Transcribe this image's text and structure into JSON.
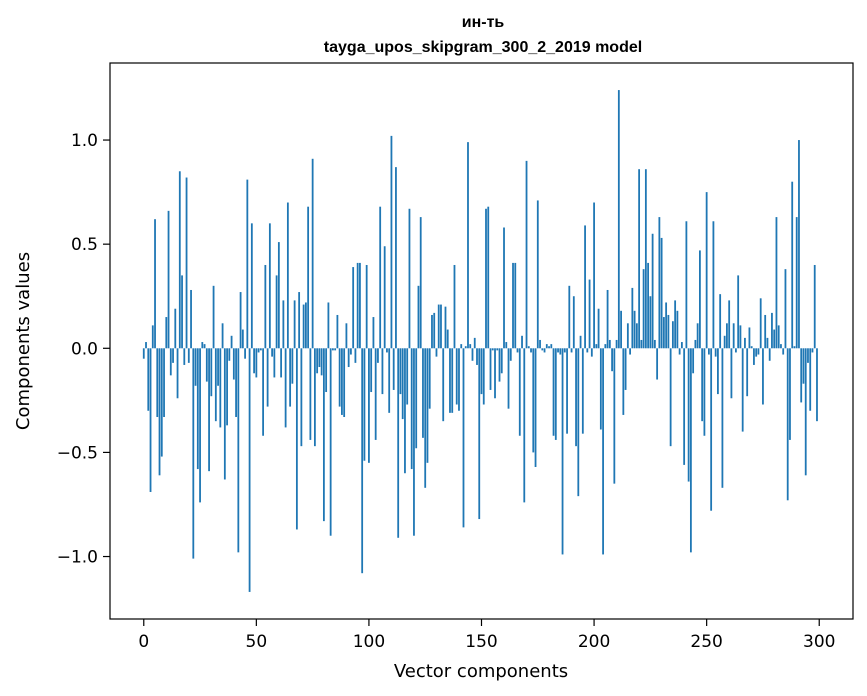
{
  "chart_data": {
    "type": "bar",
    "title": "ин-ть",
    "subtitle": "tayga_upos_skipgram_300_2_2019 model",
    "xlabel": "Vector components",
    "ylabel": "Components values",
    "xlim": [
      -15,
      315
    ],
    "ylim": [
      -1.3,
      1.37
    ],
    "x_ticks": [
      0,
      50,
      100,
      150,
      200,
      250,
      300
    ],
    "x_tick_labels": [
      "0",
      "50",
      "100",
      "150",
      "200",
      "250",
      "300"
    ],
    "y_ticks": [
      -1.0,
      -0.5,
      0.0,
      0.5,
      1.0
    ],
    "y_tick_labels": [
      "−1.0",
      "−0.5",
      "0.0",
      "0.5",
      "1.0"
    ],
    "grid": false,
    "bar_color": "#1f77b4",
    "values": [
      -0.05,
      0.03,
      -0.3,
      -0.69,
      0.11,
      0.62,
      -0.33,
      -0.61,
      -0.52,
      -0.33,
      0.15,
      0.66,
      -0.13,
      -0.07,
      0.19,
      -0.24,
      0.85,
      0.35,
      -0.08,
      0.82,
      -0.07,
      0.28,
      -1.01,
      -0.18,
      -0.58,
      -0.74,
      0.03,
      0.02,
      -0.16,
      -0.59,
      -0.23,
      0.3,
      -0.35,
      -0.18,
      -0.38,
      0.12,
      -0.63,
      -0.37,
      -0.06,
      0.06,
      -0.15,
      -0.33,
      -0.98,
      0.27,
      0.09,
      -0.05,
      0.81,
      -1.17,
      0.6,
      -0.12,
      -0.14,
      -0.02,
      -0.01,
      -0.42,
      0.4,
      -0.28,
      0.6,
      -0.04,
      -0.14,
      0.35,
      0.51,
      -0.14,
      0.23,
      -0.38,
      0.7,
      -0.28,
      -0.17,
      0.23,
      -0.87,
      0.27,
      -0.47,
      0.21,
      0.22,
      0.68,
      -0.44,
      0.91,
      -0.47,
      -0.12,
      -0.09,
      -0.13,
      -0.83,
      -0.21,
      0.22,
      -0.9,
      -0.01,
      -0.01,
      0.16,
      -0.28,
      -0.32,
      -0.33,
      0.12,
      -0.09,
      -0.03,
      0.39,
      -0.07,
      0.41,
      0.41,
      -1.08,
      -0.54,
      0.4,
      -0.55,
      -0.21,
      0.15,
      -0.44,
      -0.07,
      0.68,
      -0.22,
      0.49,
      -0.02,
      -0.31,
      1.02,
      -0.2,
      0.87,
      -0.91,
      -0.22,
      -0.34,
      -0.6,
      -0.27,
      0.67,
      -0.58,
      -0.9,
      -0.48,
      0.3,
      0.63,
      -0.43,
      -0.67,
      -0.55,
      -0.29,
      0.16,
      0.17,
      -0.04,
      0.21,
      0.21,
      -0.35,
      0.2,
      0.09,
      -0.31,
      -0.31,
      0.4,
      -0.27,
      -0.3,
      0.02,
      -0.86,
      0.01,
      0.99,
      0.02,
      -0.06,
      0.05,
      -0.08,
      -0.82,
      -0.22,
      -0.27,
      0.67,
      0.68,
      -0.2,
      -0.01,
      -0.24,
      -0.01,
      -0.16,
      -0.12,
      0.58,
      0.03,
      -0.29,
      -0.06,
      0.41,
      0.41,
      -0.02,
      -0.42,
      0.06,
      -0.74,
      0.9,
      0.01,
      -0.02,
      -0.5,
      -0.57,
      0.71,
      0.04,
      -0.01,
      -0.02,
      0.02,
      0.01,
      0.02,
      -0.42,
      -0.44,
      -0.02,
      -0.03,
      -0.99,
      -0.02,
      -0.41,
      0.3,
      -0.02,
      0.25,
      -0.47,
      -0.71,
      0.06,
      -0.41,
      0.59,
      -0.02,
      0.33,
      -0.04,
      0.7,
      0.02,
      0.19,
      -0.39,
      -0.99,
      0.02,
      0.28,
      0.04,
      -0.11,
      -0.65,
      0.04,
      1.24,
      0.18,
      -0.32,
      -0.2,
      0.12,
      -0.03,
      0.29,
      0.18,
      0.12,
      0.86,
      0.04,
      0.38,
      0.86,
      0.41,
      0.25,
      0.55,
      0.04,
      -0.15,
      0.63,
      0.53,
      0.15,
      0.22,
      0.16,
      -0.47,
      0.13,
      0.23,
      0.18,
      -0.03,
      0.03,
      -0.56,
      0.61,
      -0.64,
      -0.98,
      -0.12,
      0.04,
      0.12,
      0.47,
      -0.35,
      -0.42,
      0.75,
      -0.03,
      -0.78,
      0.61,
      -0.04,
      -0.22,
      0.26,
      -0.67,
      0.06,
      0.12,
      0.23,
      -0.24,
      0.12,
      -0.02,
      0.35,
      0.11,
      -0.4,
      0.05,
      -0.23,
      0.1,
      0.01,
      -0.08,
      -0.04,
      -0.03,
      0.24,
      -0.27,
      0.16,
      0.05,
      -0.06,
      0.17,
      0.09,
      0.63,
      0.11,
      0.02,
      -0.03,
      0.38,
      -0.73,
      -0.44,
      0.8,
      0.01,
      0.63,
      1.0,
      -0.26,
      -0.17,
      -0.61,
      -0.07,
      -0.3,
      -0.02,
      0.4,
      -0.35
    ]
  }
}
